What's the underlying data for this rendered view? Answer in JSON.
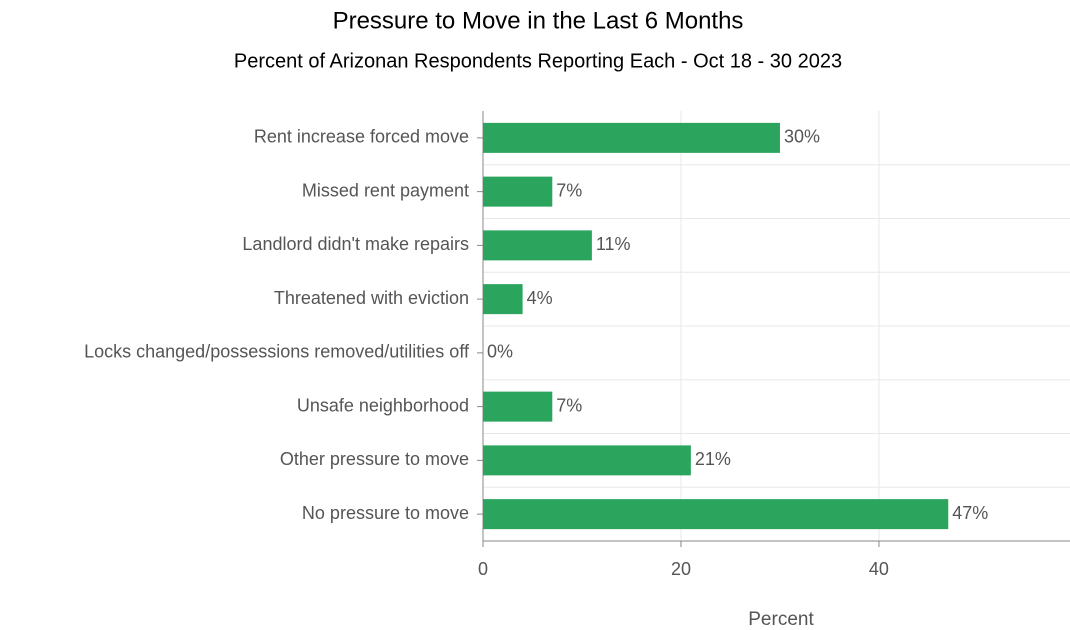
{
  "chart_data": {
    "type": "hbar",
    "title": "Pressure to Move in the Last 6 Months",
    "subtitle": "Percent of Arizonan Respondents Reporting Each  - Oct 18 - 30 2023",
    "x_label": "Percent",
    "categories": [
      "Rent increase forced move",
      "Missed rent payment",
      "Landlord didn't make repairs",
      "Threatened with eviction",
      "Locks changed/possessions removed/utilities off",
      "Unsafe neighborhood",
      "Other pressure to move",
      "No pressure to move"
    ],
    "values": [
      30,
      7,
      11,
      4,
      0,
      7,
      21,
      47
    ],
    "value_labels": [
      "30%",
      "7%",
      "11%",
      "4%",
      "0%",
      "7%",
      "21%",
      "47%"
    ],
    "color": "#2ba55e",
    "xlim": [
      0,
      59.3
    ],
    "xticks": [
      0,
      20,
      40
    ],
    "grid": true
  }
}
